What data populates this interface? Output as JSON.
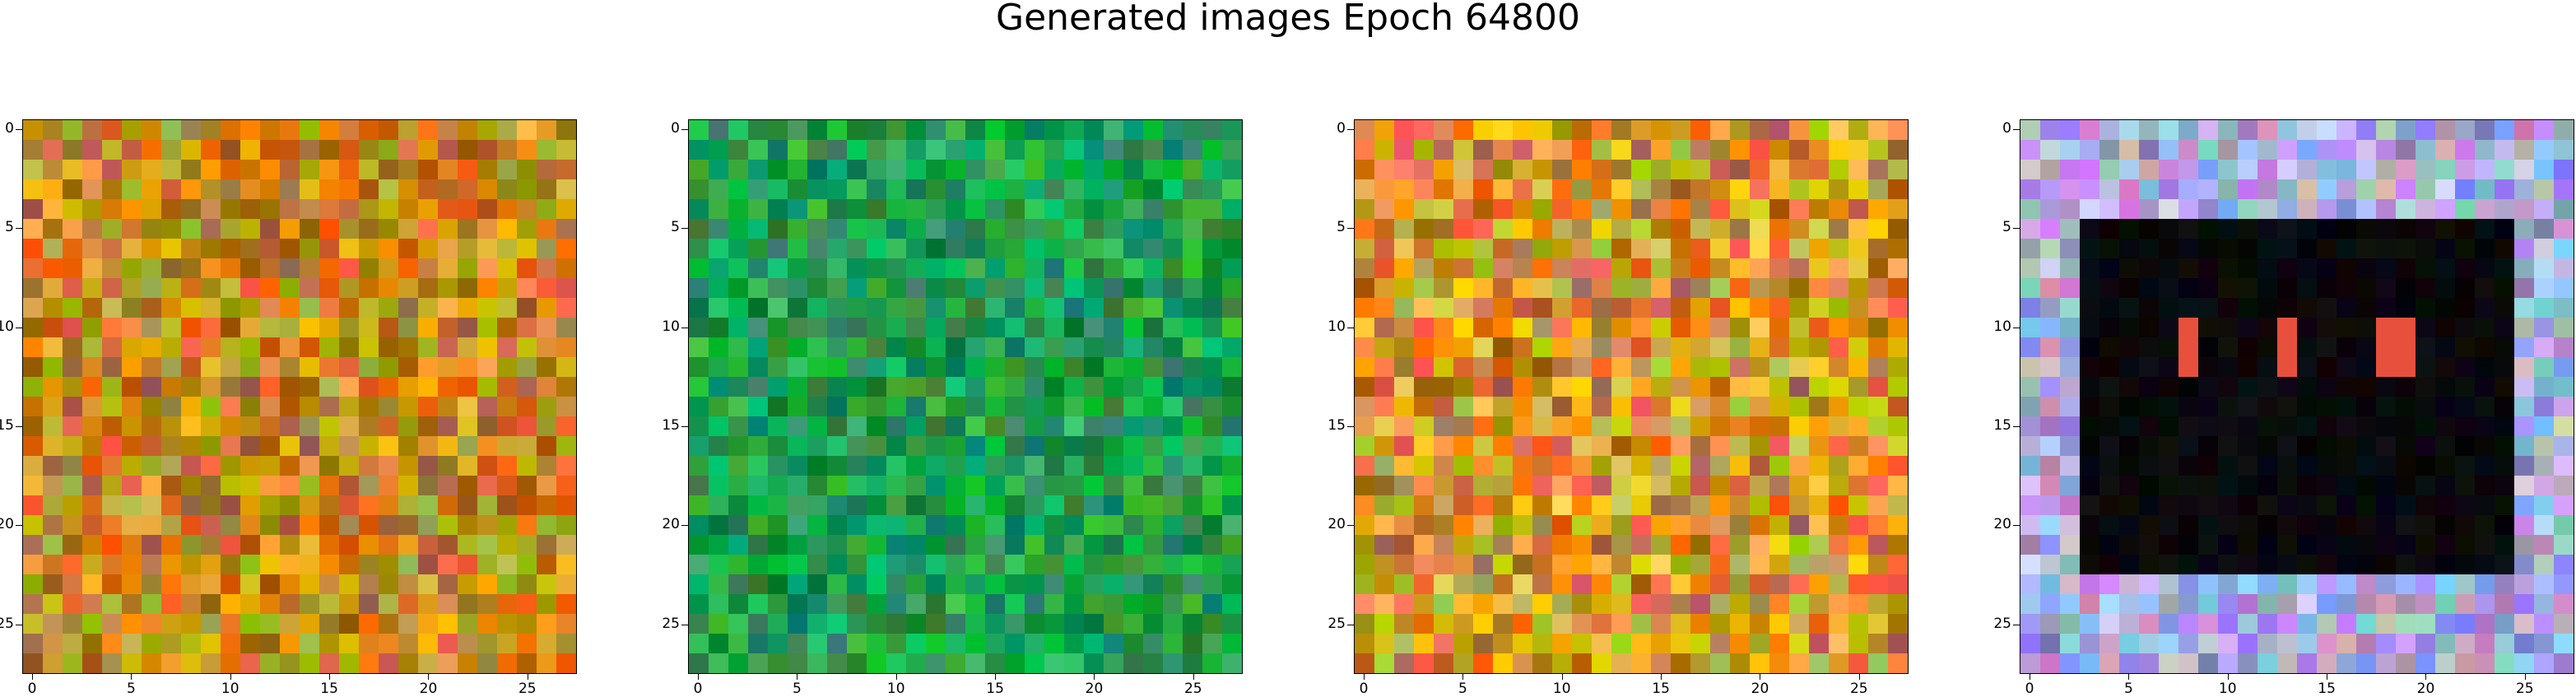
{
  "figure": {
    "title": "Generated images Epoch 64800"
  },
  "axes": {
    "ticks": [
      0,
      5,
      10,
      15,
      20,
      25
    ],
    "labels": [
      "0",
      "5",
      "10",
      "15",
      "20",
      "25"
    ],
    "grid_size": 28
  },
  "panels": [
    {
      "name": "image-1",
      "base": "#c78a1e",
      "variation": 60
    },
    {
      "name": "image-2",
      "base": "#1f9f4f",
      "variation": 45
    },
    {
      "name": "image-3",
      "base": "#d89626",
      "variation": 70
    },
    {
      "name": "image-4",
      "base": "#a8a8d8",
      "variation": 55,
      "dark_box": true
    }
  ],
  "colors": {
    "frame": "#000000",
    "background": "#ffffff"
  }
}
